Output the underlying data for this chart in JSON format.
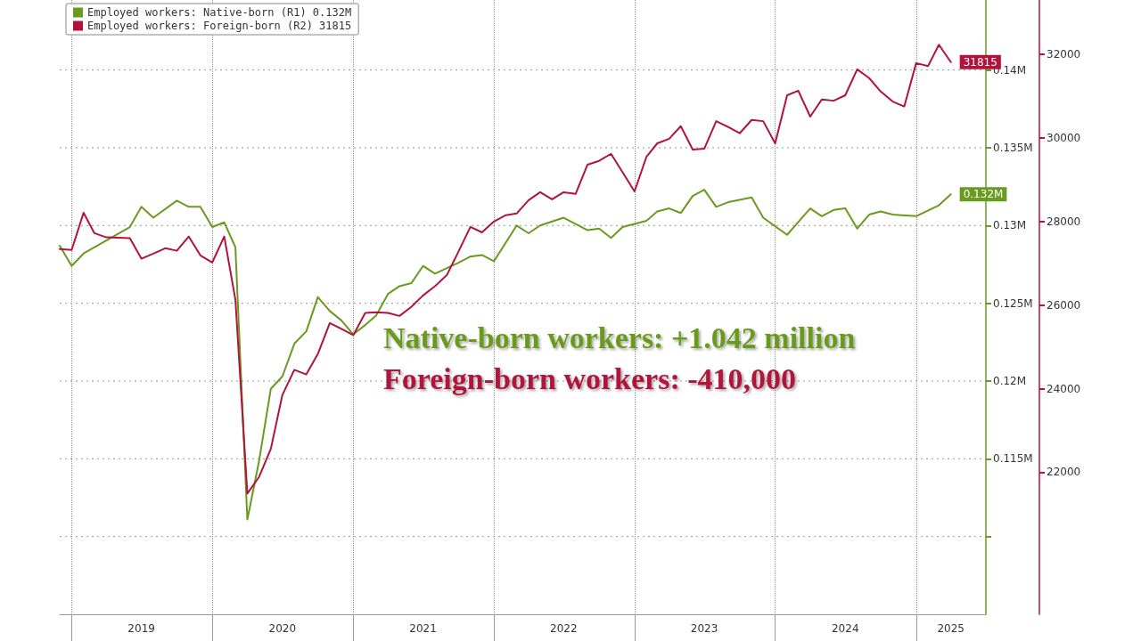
{
  "chart_data": {
    "type": "line",
    "annotations": [
      "Native-born workers: +1.042 million",
      "Foreign-born workers: -410,000"
    ],
    "series": [
      {
        "name": "Employed workers: Native-born (R1) 0.132M",
        "color": "#6a9a1f",
        "x": [
          "2018-12",
          "2019-01",
          "2019-02",
          "2019-06",
          "2019-07",
          "2019-08",
          "2019-10",
          "2019-11",
          "2019-12",
          "2020-01",
          "2020-02",
          "2020-03",
          "2020-04",
          "2020-05",
          "2020-06",
          "2020-07",
          "2020-08",
          "2020-09",
          "2020-10",
          "2020-11",
          "2020-12",
          "2021-01",
          "2021-02",
          "2021-03",
          "2021-04",
          "2021-05",
          "2021-06",
          "2021-07",
          "2021-08",
          "2021-10",
          "2021-11",
          "2021-12",
          "2022-01",
          "2022-03",
          "2022-04",
          "2022-05",
          "2022-07",
          "2022-09",
          "2022-10",
          "2022-11",
          "2022-12",
          "2023-02",
          "2023-03",
          "2023-04",
          "2023-05",
          "2023-06",
          "2023-07",
          "2023-08",
          "2023-09",
          "2023-11",
          "2023-12",
          "2024-02",
          "2024-04",
          "2024-05",
          "2024-06",
          "2024-07",
          "2024-08",
          "2024-09",
          "2024-10",
          "2024-11",
          "2025-01",
          "2025-03",
          "2025-04"
        ],
        "values": [
          0.1287,
          0.1274,
          0.1282,
          0.1299,
          0.1312,
          0.1305,
          0.1316,
          0.1312,
          0.1312,
          0.1299,
          0.1302,
          0.1286,
          0.1111,
          0.1148,
          0.1195,
          0.1203,
          0.1224,
          0.1232,
          0.1254,
          0.1245,
          0.1239,
          0.123,
          0.1236,
          0.1242,
          0.1256,
          0.1261,
          0.1263,
          0.1274,
          0.1269,
          0.1276,
          0.128,
          0.1281,
          0.1277,
          0.13,
          0.1295,
          0.13,
          0.1305,
          0.1297,
          0.1298,
          0.1292,
          0.1299,
          0.1303,
          0.1309,
          0.1311,
          0.1308,
          0.1319,
          0.1323,
          0.1312,
          0.1315,
          0.1318,
          0.1305,
          0.1294,
          0.1311,
          0.1306,
          0.131,
          0.1311,
          0.1298,
          0.1307,
          0.1309,
          0.1307,
          0.1306,
          0.1313,
          0.132
        ],
        "value_labels": [
          null,
          null,
          null,
          null,
          null,
          null,
          null,
          null,
          null,
          null,
          null,
          null,
          null,
          null,
          null,
          null,
          null,
          null,
          null,
          null,
          null,
          null,
          null,
          null,
          null,
          null,
          null,
          null,
          null,
          null,
          null,
          null,
          null,
          null,
          null,
          null,
          null,
          null,
          null,
          null,
          null,
          null,
          null,
          null,
          null,
          null,
          null,
          null,
          null,
          null,
          null,
          null,
          null,
          null,
          null,
          null,
          null,
          null,
          null,
          null,
          null,
          null,
          "0.132M"
        ]
      },
      {
        "name": "Employed workers: Foreign-born (R2) 31815",
        "color": "#b0143c",
        "axis": "y2",
        "x": [
          "2018-12",
          "2019-01",
          "2019-02",
          "2019-03",
          "2019-04",
          "2019-06",
          "2019-07",
          "2019-08",
          "2019-09",
          "2019-10",
          "2019-11",
          "2019-12",
          "2020-01",
          "2020-02",
          "2020-03",
          "2020-04",
          "2020-05",
          "2020-06",
          "2020-07",
          "2020-08",
          "2020-09",
          "2020-10",
          "2020-11",
          "2020-12",
          "2021-01",
          "2021-02",
          "2021-03",
          "2021-04",
          "2021-05",
          "2021-06",
          "2021-07",
          "2021-08",
          "2021-09",
          "2021-10",
          "2021-11",
          "2021-12",
          "2022-01",
          "2022-02",
          "2022-03",
          "2022-04",
          "2022-05",
          "2022-06",
          "2022-07",
          "2022-08",
          "2022-09",
          "2022-10",
          "2022-11",
          "2023-01",
          "2023-02",
          "2023-03",
          "2023-04",
          "2023-05",
          "2023-06",
          "2023-07",
          "2023-08",
          "2023-09",
          "2023-10",
          "2023-11",
          "2023-12",
          "2024-01",
          "2024-02",
          "2024-03",
          "2024-04",
          "2024-05",
          "2024-06",
          "2024-07",
          "2024-08",
          "2024-09",
          "2024-10",
          "2024-11",
          "2024-12",
          "2025-01",
          "2025-02",
          "2025-03",
          "2025-04"
        ],
        "values": [
          27340,
          27320,
          28210,
          27720,
          27620,
          27600,
          27110,
          27230,
          27360,
          27300,
          27640,
          27190,
          27020,
          27640,
          26130,
          21490,
          21880,
          22560,
          23850,
          24450,
          24340,
          24830,
          25570,
          25430,
          25280,
          25810,
          25830,
          25810,
          25740,
          25960,
          26230,
          26450,
          26720,
          27280,
          27870,
          27740,
          28000,
          28150,
          28190,
          28510,
          28700,
          28530,
          28700,
          28660,
          29360,
          29450,
          29620,
          28720,
          29550,
          29870,
          29980,
          30280,
          29720,
          29740,
          30400,
          30260,
          30110,
          30430,
          30400,
          29870,
          31020,
          31130,
          30510,
          30920,
          30890,
          31020,
          31640,
          31430,
          31110,
          30870,
          30750,
          31790,
          31720,
          32230,
          31815
        ],
        "value_labels": [
          null,
          null,
          null,
          null,
          null,
          null,
          null,
          null,
          null,
          null,
          null,
          null,
          null,
          null,
          null,
          null,
          null,
          null,
          null,
          null,
          null,
          null,
          null,
          null,
          null,
          null,
          null,
          null,
          null,
          null,
          null,
          null,
          null,
          null,
          null,
          null,
          null,
          null,
          null,
          null,
          null,
          null,
          null,
          null,
          null,
          null,
          null,
          null,
          null,
          null,
          null,
          null,
          null,
          null,
          null,
          null,
          null,
          null,
          null,
          null,
          null,
          null,
          null,
          null,
          null,
          null,
          null,
          null,
          null,
          null,
          null,
          null,
          null,
          null,
          "31815"
        ]
      }
    ],
    "xlim": [
      "2018-12",
      "2025-07"
    ],
    "xticks": [
      {
        "value": "2019-01",
        "label": null
      },
      {
        "value": "2019-07",
        "label": "2019"
      },
      {
        "value": "2020-01",
        "label": null
      },
      {
        "value": "2020-07",
        "label": "2020"
      },
      {
        "value": "2021-01",
        "label": null
      },
      {
        "value": "2021-07",
        "label": "2021"
      },
      {
        "value": "2022-01",
        "label": null
      },
      {
        "value": "2022-07",
        "label": "2022"
      },
      {
        "value": "2023-01",
        "label": null
      },
      {
        "value": "2023-07",
        "label": "2023"
      },
      {
        "value": "2024-01",
        "label": null
      },
      {
        "value": "2024-07",
        "label": "2024"
      },
      {
        "value": "2025-01",
        "label": null
      },
      {
        "value": "2025-04",
        "label": "2025"
      }
    ],
    "ylim": [
      0.105,
      0.1445
    ],
    "yticks": [
      {
        "value": 0.11,
        "label": null
      },
      {
        "value": 0.115,
        "label": "0.115M"
      },
      {
        "value": 0.12,
        "label": "0.12M"
      },
      {
        "value": 0.125,
        "label": "0.125M"
      },
      {
        "value": 0.13,
        "label": "0.13M"
      },
      {
        "value": 0.135,
        "label": "0.135M"
      },
      {
        "value": 0.14,
        "label": "0.14M"
      }
    ],
    "y2lim": [
      18600,
      33300
    ],
    "y2ticks": [
      22000,
      24000,
      26000,
      28000,
      30000,
      32000
    ],
    "grid": true,
    "legend": "top left",
    "marker": "none",
    "line_style": "solid"
  }
}
